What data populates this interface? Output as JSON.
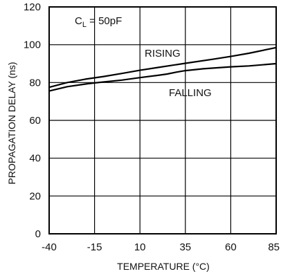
{
  "chart_data": {
    "type": "line",
    "title": "",
    "xlabel": "TEMPERATURE (°C)",
    "ylabel": "PROPAGATION DELAY (ns)",
    "xlim": [
      -40,
      85
    ],
    "ylim": [
      0,
      120
    ],
    "xticks": [
      -40,
      -15,
      10,
      35,
      60,
      85
    ],
    "yticks": [
      0,
      20,
      40,
      60,
      80,
      100,
      120
    ],
    "grid": true,
    "condition": {
      "main": "C",
      "sub": "L",
      "rest": " = 50pF"
    },
    "series": [
      {
        "name": "RISING",
        "x": [
          -40,
          -30,
          -20,
          -15,
          -10,
          0,
          10,
          20,
          35,
          50,
          60,
          70,
          85
        ],
        "y": [
          77.5,
          80.0,
          81.8,
          82.5,
          83.2,
          84.8,
          86.5,
          88.0,
          90.2,
          92.3,
          93.8,
          95.5,
          98.5
        ]
      },
      {
        "name": "FALLING",
        "x": [
          -40,
          -30,
          -20,
          -15,
          -10,
          0,
          10,
          20,
          25,
          30,
          35,
          45,
          60,
          70,
          85
        ],
        "y": [
          75.5,
          77.8,
          79.2,
          79.8,
          80.3,
          81.3,
          82.6,
          83.8,
          84.5,
          85.5,
          86.3,
          87.3,
          88.3,
          88.8,
          90.0
        ]
      }
    ]
  }
}
